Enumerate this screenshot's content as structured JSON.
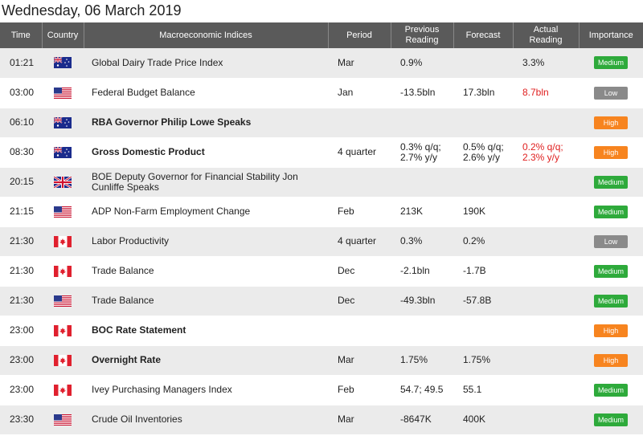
{
  "date_title": "Wednesday, 06 March 2019",
  "headers": {
    "time": "Time",
    "country": "Country",
    "indices": "Macroeconomic Indices",
    "period": "Period",
    "previous": "Previous Reading",
    "forecast": "Forecast",
    "actual": "Actual Reading",
    "importance": "Importance"
  },
  "colors": {
    "header_bg": "#5a5a5a",
    "medium": "#2eaa3b",
    "low": "#8a8a8a",
    "high": "#f7841f",
    "actual_red": "#e02020"
  },
  "rows": [
    {
      "time": "01:21",
      "country": "australia-flag",
      "indicator": "Global Dairy Trade Price Index",
      "bold": false,
      "period": "Mar",
      "previous": "0.9%",
      "forecast": "",
      "actual": "3.3%",
      "actual_red": false,
      "importance": "Medium"
    },
    {
      "time": "03:00",
      "country": "us-flag",
      "indicator": "Federal Budget Balance",
      "bold": false,
      "period": "Jan",
      "previous": "-13.5bln",
      "forecast": "17.3bln",
      "actual": "8.7bln",
      "actual_red": true,
      "importance": "Low"
    },
    {
      "time": "06:10",
      "country": "australia-flag",
      "indicator": "RBA Governor Philip Lowe Speaks",
      "bold": true,
      "period": "",
      "previous": "",
      "forecast": "",
      "actual": "",
      "actual_red": false,
      "importance": "High"
    },
    {
      "time": "08:30",
      "country": "australia-flag",
      "indicator": "Gross Domestic Product",
      "bold": true,
      "period": "4 quarter",
      "previous": "0.3% q/q;\n2.7% y/y",
      "forecast": "0.5% q/q;\n2.6% y/y",
      "actual": "0.2% q/q;\n2.3% y/y",
      "actual_red": true,
      "importance": "High"
    },
    {
      "time": "20:15",
      "country": "uk-flag",
      "indicator": "BOE Deputy Governor for Financial Stability Jon Cunliffe Speaks",
      "bold": false,
      "period": "",
      "previous": "",
      "forecast": "",
      "actual": "",
      "actual_red": false,
      "importance": "Medium"
    },
    {
      "time": "21:15",
      "country": "us-flag",
      "indicator": "ADP Non-Farm Employment Change",
      "bold": false,
      "period": "Feb",
      "previous": "213K",
      "forecast": "190K",
      "actual": "",
      "actual_red": false,
      "importance": "Medium"
    },
    {
      "time": "21:30",
      "country": "canada-flag",
      "indicator": "Labor Productivity",
      "bold": false,
      "period": "4 quarter",
      "previous": "0.3%",
      "forecast": "0.2%",
      "actual": "",
      "actual_red": false,
      "importance": "Low"
    },
    {
      "time": "21:30",
      "country": "canada-flag",
      "indicator": "Trade Balance",
      "bold": false,
      "period": "Dec",
      "previous": "-2.1bln",
      "forecast": "-1.7B",
      "actual": "",
      "actual_red": false,
      "importance": "Medium"
    },
    {
      "time": "21:30",
      "country": "us-flag",
      "indicator": "Trade Balance",
      "bold": false,
      "period": "Dec",
      "previous": "-49.3bln",
      "forecast": "-57.8B",
      "actual": "",
      "actual_red": false,
      "importance": "Medium"
    },
    {
      "time": "23:00",
      "country": "canada-flag",
      "indicator": "BOC Rate Statement",
      "bold": true,
      "period": "",
      "previous": "",
      "forecast": "",
      "actual": "",
      "actual_red": false,
      "importance": "High"
    },
    {
      "time": "23:00",
      "country": "canada-flag",
      "indicator": "Overnight Rate",
      "bold": true,
      "period": "Mar",
      "previous": "1.75%",
      "forecast": "1.75%",
      "actual": "",
      "actual_red": false,
      "importance": "High"
    },
    {
      "time": "23:00",
      "country": "canada-flag",
      "indicator": "Ivey Purchasing Managers Index",
      "bold": false,
      "period": "Feb",
      "previous": "54.7; 49.5",
      "forecast": "55.1",
      "actual": "",
      "actual_red": false,
      "importance": "Medium"
    },
    {
      "time": "23:30",
      "country": "us-flag",
      "indicator": "Crude Oil Inventories",
      "bold": false,
      "period": "Mar",
      "previous": "-8647K",
      "forecast": "400K",
      "actual": "",
      "actual_red": false,
      "importance": "Medium"
    }
  ]
}
